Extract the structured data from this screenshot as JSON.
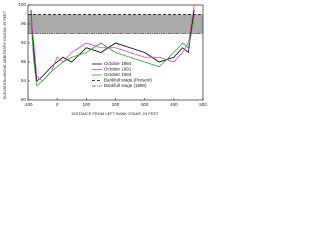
{
  "chart_data": {
    "type": "line",
    "x_label": "DISTANCE FROM LEFT BANK STAKE, IN FEET",
    "y_label": "ELEVATION ABOVE ARBITRARY DATUM, IN FEET",
    "x": [
      -90,
      -80,
      -70,
      -50,
      -20,
      0,
      20,
      50,
      100,
      150,
      200,
      250,
      300,
      350,
      400,
      430,
      450,
      460,
      470
    ],
    "series": [
      {
        "name": "October 1984",
        "color": "#000000",
        "values": [
          99,
          90,
          84,
          85,
          87,
          88,
          89,
          88,
          91,
          90,
          92,
          91,
          90,
          88,
          89,
          91,
          90,
          95,
          99
        ]
      },
      {
        "name": "October 1991",
        "color": "#e040c0",
        "values": [
          98,
          92,
          85,
          84,
          86,
          89,
          88,
          90,
          92,
          91,
          91,
          90,
          89,
          89,
          88,
          90,
          92,
          96,
          100
        ]
      },
      {
        "name": "October 1994",
        "color": "#22aa22",
        "values": [
          97,
          88,
          83,
          84,
          86,
          87,
          88,
          89,
          90,
          92,
          90,
          89,
          88,
          87,
          90,
          92,
          91,
          94,
          98
        ]
      }
    ],
    "reference_lines": [
      {
        "name": "Bankfull stage (Present)",
        "value": 98,
        "color": "#000000",
        "dash": "3 2"
      },
      {
        "name": "Bankfull stage (1980)",
        "value": 94,
        "color": "#555555",
        "dash": "4 1 1 1"
      }
    ],
    "shaded_band": {
      "range": [
        94,
        98
      ],
      "color": "#aaaaaa"
    },
    "xlim": [
      -100,
      500
    ],
    "xticks": [
      -100,
      0,
      100,
      200,
      300,
      400,
      500
    ],
    "ylim": [
      80,
      100
    ],
    "yticks": [
      80,
      84,
      88,
      92,
      96,
      100
    ],
    "legend": "center"
  }
}
